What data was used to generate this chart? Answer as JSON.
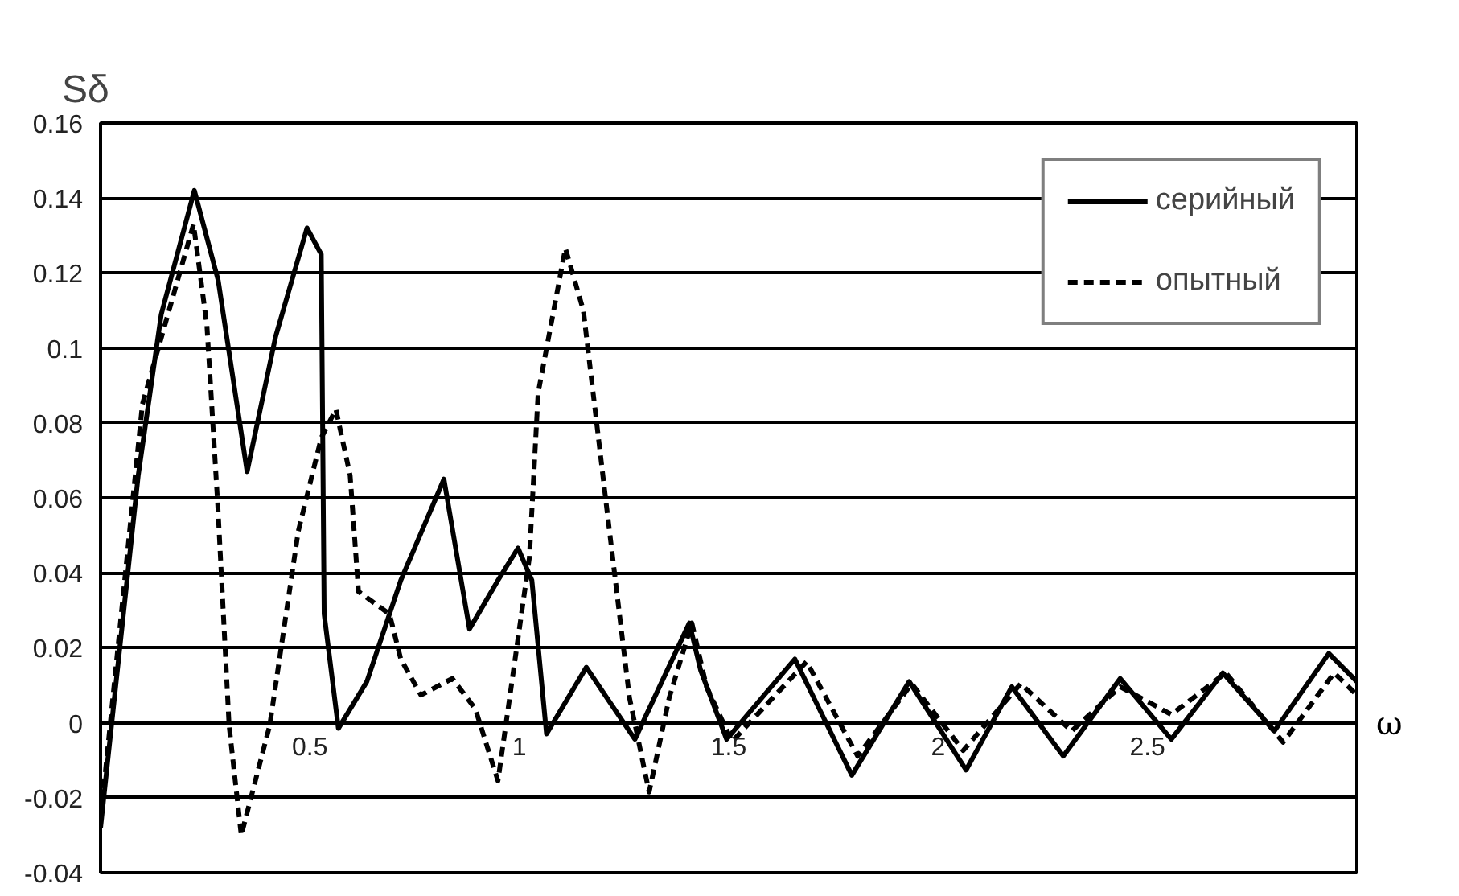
{
  "chart_data": {
    "type": "line",
    "xlabel": "ω",
    "ylabel": "Sδ",
    "xlim": [
      0,
      3
    ],
    "ylim": [
      -0.04,
      0.16
    ],
    "xticks": [
      0.5,
      1,
      1.5,
      2,
      2.5
    ],
    "yticks": [
      {
        "value": -0.04,
        "label": "-0.04"
      },
      {
        "value": -0.02,
        "label": "-0.02"
      },
      0,
      {
        "value": 0.02,
        "label": "0.02"
      },
      {
        "value": 0.04,
        "label": "0.04"
      },
      {
        "value": 0.06,
        "label": "0.06"
      },
      {
        "value": 0.08,
        "label": "0.08"
      },
      0.1,
      {
        "value": 0.12,
        "label": "0.12"
      },
      {
        "value": 0.14,
        "label": "0.14"
      },
      {
        "value": 0.16,
        "label": "0.16"
      }
    ],
    "grid": "y",
    "legend": "top right",
    "marker": "none",
    "series": [
      {
        "name": "серийный",
        "color": "#000000",
        "line_style": "solid",
        "x": [
          0,
          0.09,
          0.145,
          0.224,
          0.281,
          0.35,
          0.418,
          0.493,
          0.527,
          0.534,
          0.568,
          0.636,
          0.717,
          0.82,
          0.881,
          0.949,
          0.997,
          1.03,
          1.065,
          1.16,
          1.276,
          1.406,
          1.433,
          1.495,
          1.658,
          1.794,
          1.931,
          2.067,
          2.176,
          2.299,
          2.435,
          2.557,
          2.68,
          2.803,
          2.933,
          3.0
        ],
        "values": [
          -0.028,
          0.066,
          0.109,
          0.142,
          0.118,
          0.067,
          0.103,
          0.132,
          0.125,
          0.029,
          -0.0015,
          0.011,
          0.038,
          0.065,
          0.025,
          0.038,
          0.0466,
          0.038,
          -0.003,
          0.0148,
          -0.0044,
          0.0266,
          0.014,
          -0.0044,
          0.017,
          -0.014,
          0.011,
          -0.0126,
          0.0096,
          -0.0089,
          0.0118,
          -0.0044,
          0.0133,
          -0.0022,
          0.0185,
          0.011
        ]
      },
      {
        "name": "опытный",
        "color": "#000000",
        "line_style": "dashed",
        "x": [
          0,
          0.1,
          0.222,
          0.254,
          0.28,
          0.307,
          0.336,
          0.404,
          0.472,
          0.527,
          0.562,
          0.596,
          0.616,
          0.69,
          0.717,
          0.765,
          0.84,
          0.895,
          0.949,
          1.024,
          1.045,
          1.11,
          1.153,
          1.208,
          1.263,
          1.31,
          1.358,
          1.412,
          1.447,
          1.508,
          1.686,
          1.808,
          1.937,
          2.06,
          2.197,
          2.319,
          2.435,
          2.557,
          2.687,
          2.824,
          2.946,
          3.0
        ],
        "values": [
          -0.026,
          0.085,
          0.133,
          0.106,
          0.058,
          -0.0007,
          -0.03,
          -0.0007,
          0.051,
          0.076,
          0.0836,
          0.066,
          0.035,
          0.029,
          0.017,
          0.0074,
          0.0118,
          0.0037,
          -0.0155,
          0.044,
          0.088,
          0.1266,
          0.11,
          0.058,
          0.0067,
          -0.0185,
          0.0067,
          0.0266,
          0.0096,
          -0.005,
          0.0163,
          -0.0089,
          0.0104,
          -0.0074,
          0.0104,
          -0.0022,
          0.0096,
          0.0022,
          0.0133,
          -0.0052,
          0.0133,
          0.0074
        ]
      }
    ]
  }
}
